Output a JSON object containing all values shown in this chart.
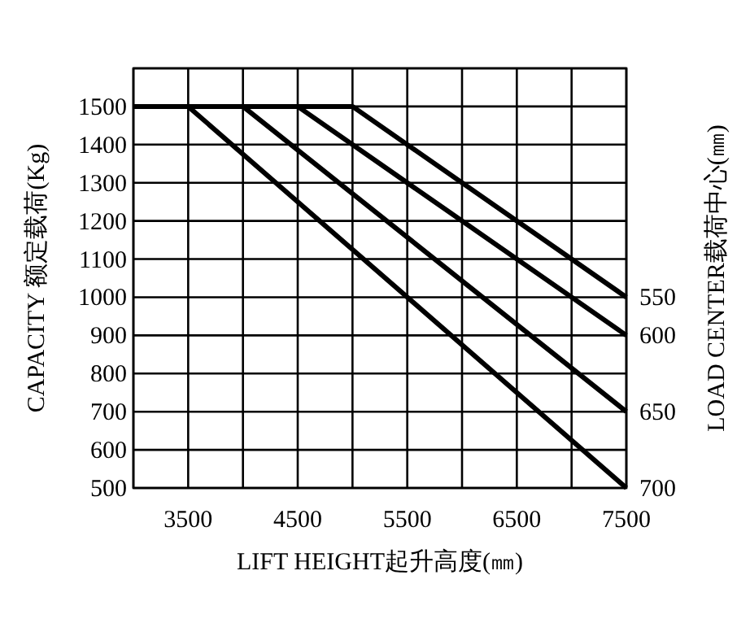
{
  "chart_data": {
    "type": "line",
    "xlabel": "LIFT HEIGHT起升高度(㎜)",
    "ylabel": "CAPACITY  额定载荷(Kg)",
    "y2label": "LOAD CENTER载荷中心(㎜)",
    "xlim": [
      3000,
      7500
    ],
    "ylim": [
      500,
      1600
    ],
    "xticks": [
      {
        "value": 3000,
        "label": null
      },
      3500,
      {
        "value": 4000,
        "label": null
      },
      4500,
      {
        "value": 5000,
        "label": null
      },
      5500,
      {
        "value": 6000,
        "label": null
      },
      6500,
      {
        "value": 7000,
        "label": null
      },
      7500
    ],
    "yticks": [
      500,
      600,
      700,
      800,
      900,
      1000,
      1100,
      1200,
      1300,
      1400,
      1500,
      {
        "value": 1600,
        "label": null
      }
    ],
    "grid": true,
    "line_style": "solid",
    "series": [
      {
        "name": "550",
        "color": "#000000",
        "x": [
          3000,
          5000,
          7500
        ],
        "values": [
          1500,
          1500,
          1000
        ]
      },
      {
        "name": "600",
        "color": "#000000",
        "x": [
          3000,
          4500,
          7500
        ],
        "values": [
          1500,
          1500,
          900
        ]
      },
      {
        "name": "650",
        "color": "#000000",
        "x": [
          3000,
          4000,
          7500
        ],
        "values": [
          1500,
          1500,
          700
        ]
      },
      {
        "name": "700",
        "color": "#000000",
        "x": [
          3000,
          3500,
          7500
        ],
        "values": [
          1500,
          1500,
          500
        ]
      }
    ]
  }
}
